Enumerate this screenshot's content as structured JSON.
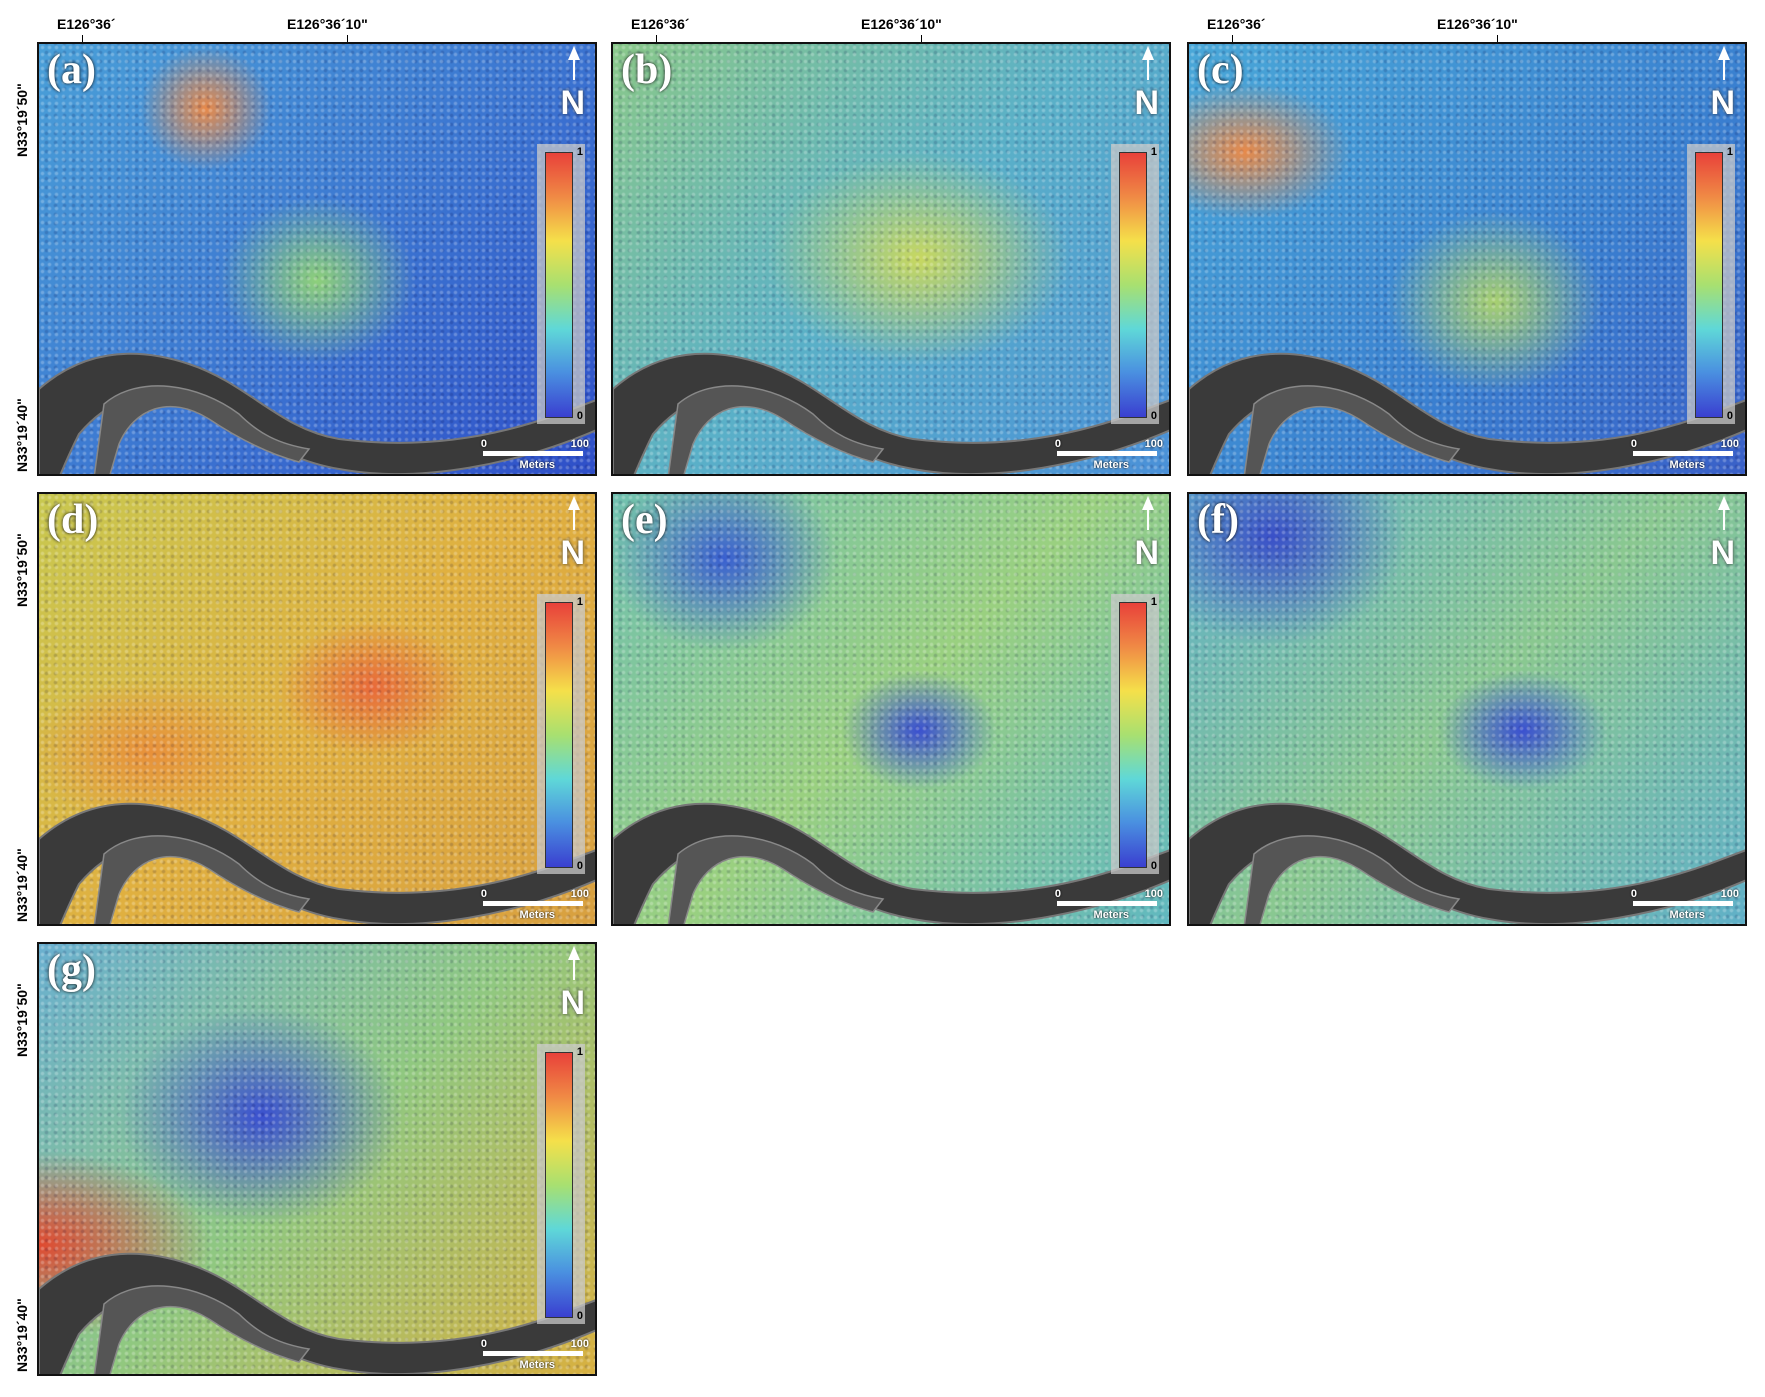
{
  "coords": {
    "lon": [
      "E126°36´",
      "E126°36´10\""
    ],
    "lat": [
      "N33°19´50\"",
      "N33°19´40\""
    ]
  },
  "panels": [
    {
      "label": "(a)",
      "north": "N",
      "colorbar": {
        "max": "1",
        "min": "0"
      },
      "scale": {
        "start": "0",
        "end": "100",
        "unit": "Meters"
      }
    },
    {
      "label": "(b)",
      "north": "N",
      "colorbar": {
        "max": "1",
        "min": "0"
      },
      "scale": {
        "start": "0",
        "end": "100",
        "unit": "Meters"
      }
    },
    {
      "label": "(c)",
      "north": "N",
      "colorbar": {
        "max": "1",
        "min": "0"
      },
      "scale": {
        "start": "0",
        "end": "100",
        "unit": "Meters"
      }
    },
    {
      "label": "(d)",
      "north": "N",
      "colorbar": {
        "max": "1",
        "min": "0"
      },
      "scale": {
        "start": "0",
        "end": "100",
        "unit": "Meters"
      }
    },
    {
      "label": "(e)",
      "north": "N",
      "colorbar": {
        "max": "1",
        "min": "0"
      },
      "scale": {
        "start": "0",
        "end": "100",
        "unit": "Meters"
      }
    },
    {
      "label": "(f)",
      "north": "N",
      "scale": {
        "start": "0",
        "end": "100",
        "unit": "Meters"
      }
    },
    {
      "label": "(g)",
      "north": "N",
      "colorbar": {
        "max": "1",
        "min": "0"
      },
      "scale": {
        "start": "0",
        "end": "100",
        "unit": "Meters"
      }
    }
  ]
}
